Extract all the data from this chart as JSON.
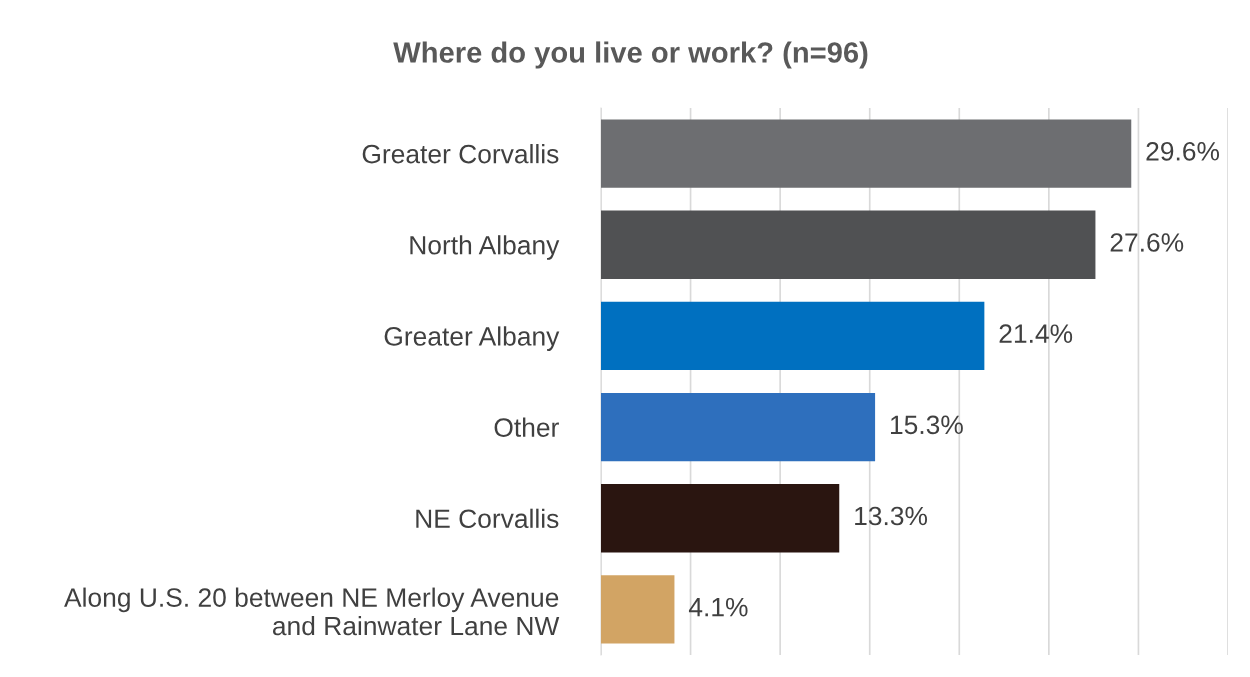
{
  "chart_data": {
    "type": "bar",
    "orientation": "horizontal",
    "title": "Where do you live or work? (n=96)",
    "categories": [
      "Greater Corvallis",
      "North Albany",
      "Greater Albany",
      "Other",
      "NE Corvallis",
      "Along U.S. 20 between NE Merloy Avenue\nand Rainwater Lane NW"
    ],
    "values": [
      29.6,
      27.6,
      21.4,
      15.3,
      13.3,
      4.1
    ],
    "colors": [
      "#6d6e71",
      "#505153",
      "#0070c0",
      "#2e6fbd",
      "#2a1510",
      "#d2a464"
    ],
    "value_labels": [
      "29.6%",
      "27.6%",
      "21.4%",
      "15.3%",
      "13.3%",
      "4.1%"
    ],
    "xlim": [
      0,
      35
    ],
    "xticks": [
      {
        "value": 0,
        "label": null
      },
      {
        "value": 5,
        "label": null
      },
      {
        "value": 10,
        "label": null
      },
      {
        "value": 15,
        "label": null
      },
      {
        "value": 20,
        "label": null
      },
      {
        "value": 25,
        "label": null
      },
      {
        "value": 30,
        "label": null
      },
      {
        "value": 35,
        "label": null
      }
    ],
    "grid": "x",
    "legend": false
  }
}
